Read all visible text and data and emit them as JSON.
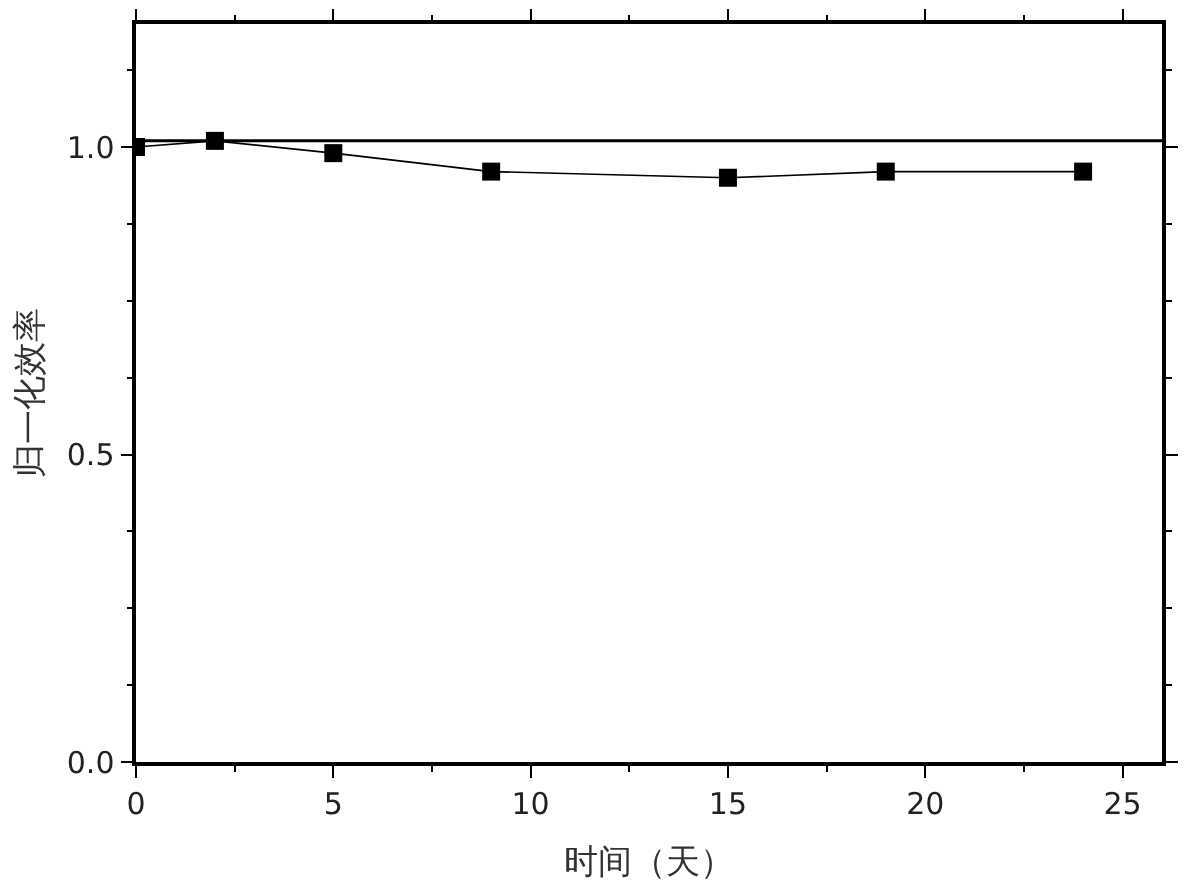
{
  "chart_data": {
    "type": "line",
    "xlabel": "时间（天）",
    "ylabel": "归一化效率",
    "x": [
      0,
      2,
      5,
      9,
      15,
      19,
      24
    ],
    "series": [
      {
        "color": "#000000",
        "values": [
          1.0,
          1.01,
          0.99,
          0.96,
          0.95,
          0.96,
          0.96
        ]
      }
    ],
    "xlim": [
      0,
      26
    ],
    "xticks": [
      0,
      5,
      10,
      15,
      20,
      25
    ],
    "ylim": [
      0,
      1.2
    ],
    "yticks": [
      {
        "value": 0,
        "label": "0.0"
      },
      {
        "value": 0.5,
        "label": "0.5"
      },
      {
        "value": 1,
        "label": "1.0"
      }
    ],
    "ref_lines": [
      {
        "axis": "y",
        "value": 1.01,
        "color": "#000000"
      }
    ],
    "marker": "square",
    "line_style": "solid"
  }
}
